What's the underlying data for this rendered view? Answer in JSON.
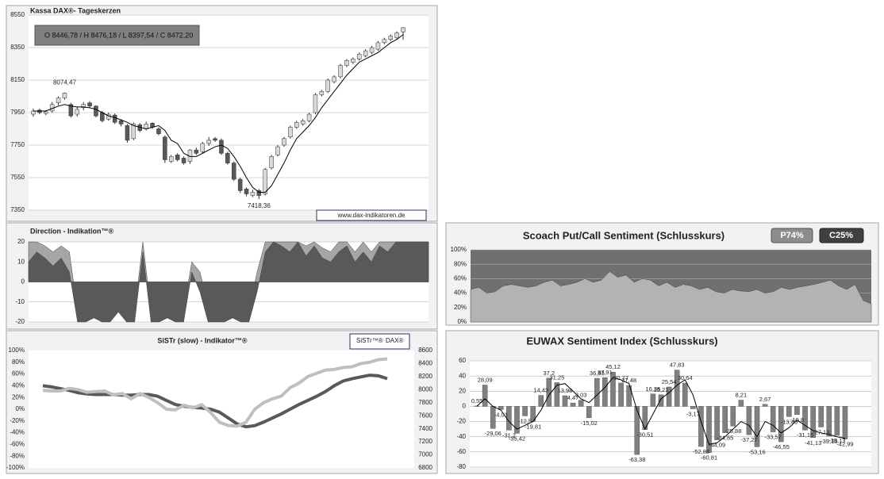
{
  "chart_data": [
    {
      "type": "candlestick",
      "title": "Kassa DAX®- Tageskerzen",
      "annotations": [
        "O 8446,78 / H 8476,18 / L 8397,54 / C 8472,20",
        "8074,47",
        "7418,36",
        "www.dax-indikatoren.de"
      ],
      "open": [
        7940,
        7965,
        7945,
        7960,
        8010,
        8040,
        8000,
        7940,
        7980,
        8010,
        7990,
        7950,
        7910,
        7935,
        7900,
        7870,
        7790,
        7875,
        7850,
        7885,
        7850,
        7800,
        7650,
        7690,
        7670,
        7650,
        7720,
        7710,
        7760,
        7790,
        7780,
        7700,
        7640,
        7540,
        7480,
        7440,
        7470,
        7450,
        7610,
        7690,
        7750,
        7800,
        7860,
        7880,
        7900,
        7950,
        8060,
        8080,
        8140,
        8170,
        8240,
        8260,
        8280,
        8300,
        8320,
        8340,
        8380,
        8400,
        8410,
        8446.78
      ],
      "high": [
        7975,
        7975,
        7965,
        8015,
        8050,
        8074.47,
        8010,
        7985,
        8015,
        8020,
        7995,
        7960,
        7950,
        7945,
        7910,
        7880,
        7890,
        7885,
        7895,
        7890,
        7860,
        7810,
        7690,
        7700,
        7680,
        7725,
        7735,
        7770,
        7800,
        7800,
        7790,
        7710,
        7650,
        7550,
        7490,
        7475,
        7480,
        7610,
        7690,
        7750,
        7800,
        7870,
        7900,
        7910,
        7950,
        8070,
        8090,
        8160,
        8180,
        8250,
        8280,
        8290,
        8320,
        8340,
        8360,
        8390,
        8410,
        8430,
        8450,
        8476.18
      ],
      "low": [
        7925,
        7940,
        7935,
        7950,
        7995,
        8030,
        7920,
        7925,
        7965,
        7980,
        7920,
        7890,
        7900,
        7880,
        7865,
        7765,
        7780,
        7830,
        7840,
        7850,
        7810,
        7640,
        7640,
        7650,
        7630,
        7635,
        7690,
        7700,
        7745,
        7770,
        7690,
        7630,
        7530,
        7455,
        7435,
        7430,
        7418.36,
        7440,
        7600,
        7680,
        7740,
        7790,
        7850,
        7870,
        7890,
        7940,
        8050,
        8070,
        8130,
        8160,
        8230,
        8250,
        8270,
        8290,
        8310,
        8330,
        8370,
        8390,
        8400,
        8397.54
      ],
      "close": [
        7960,
        7950,
        7955,
        8000,
        8040,
        8070,
        7930,
        7970,
        8000,
        7990,
        7930,
        7900,
        7940,
        7890,
        7880,
        7780,
        7880,
        7840,
        7880,
        7860,
        7820,
        7660,
        7680,
        7660,
        7640,
        7720,
        7700,
        7760,
        7780,
        7780,
        7700,
        7640,
        7540,
        7470,
        7450,
        7460,
        7440,
        7600,
        7680,
        7740,
        7790,
        7860,
        7890,
        7900,
        7940,
        8060,
        8080,
        8150,
        8170,
        8240,
        8270,
        8280,
        8310,
        8330,
        8350,
        8380,
        8400,
        8420,
        8440,
        8472.2
      ],
      "ma": {
        "color": "#000000",
        "values": [
          7960,
          7960,
          7960,
          7975,
          7990,
          8000,
          7990,
          7985,
          7985,
          7980,
          7970,
          7950,
          7930,
          7920,
          7905,
          7890,
          7870,
          7860,
          7850,
          7860,
          7870,
          7840,
          7780,
          7760,
          7700,
          7680,
          7680,
          7700,
          7720,
          7740,
          7750,
          7730,
          7680,
          7620,
          7550,
          7490,
          7460,
          7460,
          7500,
          7570,
          7640,
          7720,
          7790,
          7830,
          7870,
          7920,
          7980,
          8030,
          8080,
          8130,
          8180,
          8220,
          8260,
          8280,
          8300,
          8320,
          8350,
          8380,
          8400,
          8430
        ]
      },
      "up_color": "#d9d9d9",
      "down_color": "#595959",
      "ylim": [
        7350,
        8550
      ],
      "yticks": [
        7350,
        7550,
        7750,
        7950,
        8150,
        8350,
        8550
      ],
      "grid": true
    },
    {
      "type": "area",
      "title": "Direction - Indikation™®",
      "series": [
        {
          "color": "#a6a6a6",
          "values": [
            20,
            20,
            18,
            15,
            18,
            15,
            -15,
            -15,
            -12,
            -15,
            -16,
            -10,
            -14,
            -15,
            20,
            -15,
            -14,
            -12,
            -15,
            -14,
            10,
            5,
            -12,
            -14,
            -10,
            -10,
            -12,
            -15,
            5,
            20,
            20,
            20,
            20,
            20,
            18,
            20,
            17,
            15,
            20,
            20,
            15,
            20,
            15,
            20,
            20,
            20,
            20,
            20,
            20,
            20
          ]
        },
        {
          "color": "#595959",
          "values": [
            10,
            15,
            12,
            8,
            12,
            5,
            -20,
            -20,
            -18,
            -20,
            -20,
            -15,
            -20,
            -20,
            15,
            -20,
            -20,
            -18,
            -20,
            -20,
            5,
            -5,
            -20,
            -20,
            -20,
            -18,
            -20,
            -20,
            -5,
            15,
            20,
            18,
            15,
            20,
            13,
            18,
            12,
            10,
            15,
            18,
            10,
            15,
            10,
            18,
            15,
            20,
            20,
            20,
            20,
            20
          ]
        }
      ],
      "ylim": [
        -20,
        20
      ],
      "yticks": [
        -20,
        -10,
        0,
        10,
        20
      ],
      "grid": true
    },
    {
      "type": "line",
      "title": "SiSTr (slow) - Indikator™®",
      "series": [
        {
          "name": "SiSTr™®",
          "color": "#595959",
          "values": [
            40,
            38,
            35,
            32,
            28,
            26,
            25,
            25,
            25,
            24,
            24,
            25,
            25,
            22,
            15,
            8,
            5,
            3,
            2,
            0,
            -5,
            -15,
            -25,
            -30,
            -28,
            -22,
            -15,
            -8,
            0,
            8,
            15,
            22,
            30,
            40,
            48,
            52,
            55,
            58,
            57,
            52
          ]
        },
        {
          "name": "DAX®",
          "color": "#bfbfbf",
          "axis": "y2",
          "values": [
            7990,
            7980,
            7980,
            8020,
            8000,
            7960,
            7970,
            7980,
            7920,
            7940,
            7860,
            7940,
            7880,
            7800,
            7700,
            7690,
            7760,
            7720,
            7770,
            7650,
            7500,
            7450,
            7440,
            7500,
            7700,
            7800,
            7860,
            7900,
            8030,
            8100,
            8200,
            8250,
            8300,
            8310,
            8340,
            8350,
            8400,
            8420,
            8460,
            8472
          ]
        }
      ],
      "ylim": [
        -100,
        100
      ],
      "yticks": [
        {
          "value": -100,
          "label": "-100%"
        },
        {
          "value": -80,
          "label": "-80%"
        },
        {
          "value": -60,
          "label": "-60%"
        },
        {
          "value": -40,
          "label": "-40%"
        },
        {
          "value": -20,
          "label": "-20%"
        },
        {
          "value": 0,
          "label": "0%"
        },
        {
          "value": 20,
          "label": "20%"
        },
        {
          "value": 40,
          "label": "40%"
        },
        {
          "value": 60,
          "label": "60%"
        },
        {
          "value": 80,
          "label": "80%"
        },
        {
          "value": 100,
          "label": "100%"
        }
      ],
      "y2lim": [
        6800,
        8600
      ],
      "y2ticks": [
        6800,
        7000,
        7200,
        7400,
        7600,
        7800,
        8000,
        8200,
        8400,
        8600
      ],
      "grid": false,
      "legend": "top-right"
    },
    {
      "type": "area",
      "title": "Scoach Put/Call Sentiment (Schlusskurs)",
      "annotations": [
        "P74%",
        "C25%"
      ],
      "series": [
        {
          "color": "#b3b3b3",
          "values": [
            45,
            48,
            40,
            42,
            50,
            52,
            50,
            48,
            50,
            55,
            58,
            50,
            52,
            55,
            60,
            55,
            58,
            70,
            62,
            65,
            55,
            60,
            58,
            50,
            55,
            48,
            52,
            50,
            45,
            48,
            42,
            40,
            45,
            43,
            42,
            45,
            40,
            42,
            48,
            45,
            48,
            50,
            52,
            55,
            58,
            50,
            45,
            52,
            30,
            25
          ]
        }
      ],
      "background": "#707070",
      "ylim": [
        0,
        100
      ],
      "yticks": [
        {
          "value": 0,
          "label": "0%"
        },
        {
          "value": 20,
          "label": "20%"
        },
        {
          "value": 40,
          "label": "40%"
        },
        {
          "value": 60,
          "label": "60%"
        },
        {
          "value": 80,
          "label": "80%"
        },
        {
          "value": 100,
          "label": "100%"
        }
      ],
      "grid": true
    },
    {
      "type": "bar",
      "title": "EUWAX Sentiment Index (Schlusskurs)",
      "color": "#808080",
      "values": [
        0.55,
        28.09,
        -29.06,
        -4.03,
        -31.2,
        -35.42,
        -12.5,
        -19.81,
        14.43,
        37.2,
        31.25,
        13.98,
        4.47,
        8.03,
        -15.02,
        36.93,
        37.91,
        45.12,
        30.77,
        27.48,
        -63.38,
        -30.51,
        16.35,
        15.21,
        25.54,
        47.83,
        30.64,
        -3.17,
        -52.88,
        -60.81,
        -44.09,
        -34.65,
        -25.88,
        8.21,
        -37.27,
        -53.16,
        2.67,
        -33.57,
        -46.55,
        -13.46,
        -10.8,
        -31.15,
        -41.13,
        -27.13,
        -39.13,
        -38.13,
        -42.99
      ],
      "value_labels": [
        "0,55",
        "28,09",
        "-29,06",
        "-4,03",
        "-31,2",
        "-35,42",
        "-12,5",
        "-19,81",
        "14,43",
        "37,2",
        "31,25",
        "13,98",
        "4,47",
        "8,03",
        "-15,02",
        "36,93",
        "37,91",
        "45,12",
        "30,77",
        "27,48",
        "-63,38",
        "-30,51",
        "16,35",
        "15,21",
        "25,54",
        "47,83",
        "30,64",
        "-3,17",
        "-52,88",
        "-60,81",
        "-44,09",
        "-34,65",
        "-25,88",
        "8,21",
        "-37,27",
        "-53,16",
        "2,67",
        "-33,57",
        "-46,55",
        "-13,46",
        "-10,8",
        "-31,15",
        "-41,13",
        "-27,13",
        "-39,13",
        "-38,13",
        "-42,99"
      ],
      "ma": {
        "color": "#000000",
        "values": [
          0.5,
          10,
          0,
          -5,
          -20,
          -30,
          -25,
          -20,
          -5,
          15,
          28,
          30,
          20,
          10,
          5,
          15,
          25,
          38,
          35,
          30,
          -5,
          -30,
          -10,
          10,
          18,
          28,
          35,
          15,
          -20,
          -50,
          -48,
          -40,
          -30,
          -20,
          -25,
          -40,
          -20,
          -25,
          -35,
          -28,
          -18,
          -25,
          -32,
          -35,
          -37,
          -40,
          -42
        ]
      },
      "ylim": [
        -80,
        60
      ],
      "yticks": [
        -80,
        -60,
        -40,
        -20,
        0,
        20,
        40,
        60
      ],
      "grid": true
    }
  ]
}
